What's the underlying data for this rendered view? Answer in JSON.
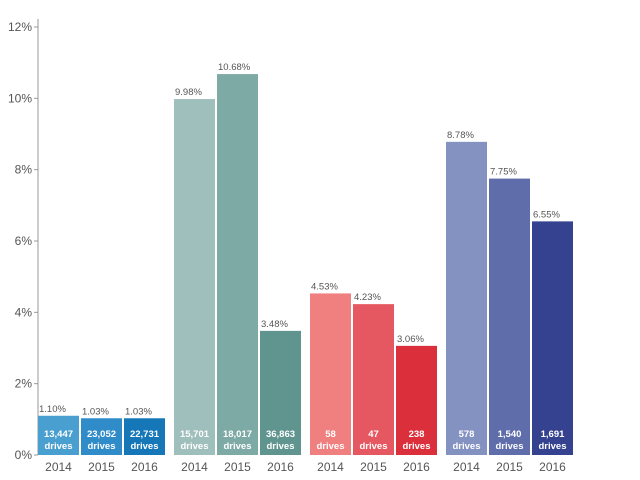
{
  "chart_data": {
    "type": "bar",
    "title": "",
    "xlabel": "",
    "ylabel": "",
    "ylim": [
      0,
      12
    ],
    "y_ticks": [
      "0%",
      "2%",
      "4%",
      "6%",
      "8%",
      "10%",
      "12%"
    ],
    "grid": false,
    "legend": "none",
    "groups": [
      {
        "colors": [
          "#4a9fd1",
          "#2f8cc9",
          "#1576b8"
        ],
        "bars": [
          {
            "year": "2014",
            "value": 1.1,
            "label": "1.10%",
            "count": "13,447",
            "unit": "drives"
          },
          {
            "year": "2015",
            "value": 1.03,
            "label": "1.03%",
            "count": "23,052",
            "unit": "drives"
          },
          {
            "year": "2016",
            "value": 1.03,
            "label": "1.03%",
            "count": "22,731",
            "unit": "drives"
          }
        ]
      },
      {
        "colors": [
          "#9fbfbc",
          "#7eaaa6",
          "#5f948f"
        ],
        "bars": [
          {
            "year": "2014",
            "value": 9.98,
            "label": "9.98%",
            "count": "15,701",
            "unit": "drives"
          },
          {
            "year": "2015",
            "value": 10.68,
            "label": "10.68%",
            "count": "18,017",
            "unit": "drives"
          },
          {
            "year": "2016",
            "value": 3.48,
            "label": "3.48%",
            "count": "36,863",
            "unit": "drives"
          }
        ]
      },
      {
        "colors": [
          "#f08080",
          "#e65861",
          "#dc2f3c"
        ],
        "bars": [
          {
            "year": "2014",
            "value": 4.53,
            "label": "4.53%",
            "count": "58",
            "unit": "drives"
          },
          {
            "year": "2015",
            "value": 4.23,
            "label": "4.23%",
            "count": "47",
            "unit": "drives"
          },
          {
            "year": "2016",
            "value": 3.06,
            "label": "3.06%",
            "count": "238",
            "unit": "drives"
          }
        ]
      },
      {
        "colors": [
          "#8492c2",
          "#5f6dab",
          "#34428f"
        ],
        "bars": [
          {
            "year": "2014",
            "value": 8.78,
            "label": "8.78%",
            "count": "578",
            "unit": "drives"
          },
          {
            "year": "2015",
            "value": 7.75,
            "label": "7.75%",
            "count": "1,540",
            "unit": "drives"
          },
          {
            "year": "2016",
            "value": 6.55,
            "label": "6.55%",
            "count": "1,691",
            "unit": "drives"
          }
        ]
      }
    ]
  }
}
